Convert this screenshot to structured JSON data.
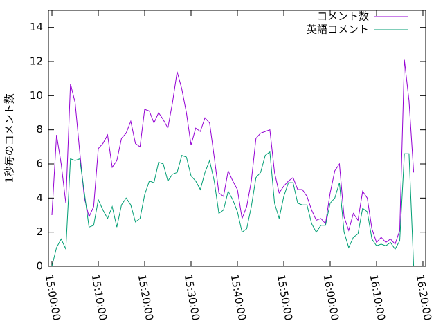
{
  "chart_data": {
    "type": "line",
    "y_label": "1秒毎のコメント数",
    "x": [
      "15:00:00",
      "15:01:00",
      "15:02:00",
      "15:03:00",
      "15:04:00",
      "15:05:00",
      "15:06:00",
      "15:07:00",
      "15:08:00",
      "15:09:00",
      "15:10:00",
      "15:11:00",
      "15:12:00",
      "15:13:00",
      "15:14:00",
      "15:15:00",
      "15:16:00",
      "15:17:00",
      "15:18:00",
      "15:19:00",
      "15:20:00",
      "15:21:00",
      "15:22:00",
      "15:23:00",
      "15:24:00",
      "15:25:00",
      "15:26:00",
      "15:27:00",
      "15:28:00",
      "15:29:00",
      "15:30:00",
      "15:31:00",
      "15:32:00",
      "15:33:00",
      "15:34:00",
      "15:35:00",
      "15:36:00",
      "15:37:00",
      "15:38:00",
      "15:39:00",
      "15:40:00",
      "15:41:00",
      "15:42:00",
      "15:43:00",
      "15:44:00",
      "15:45:00",
      "15:46:00",
      "15:47:00",
      "15:48:00",
      "15:49:00",
      "15:50:00",
      "15:51:00",
      "15:52:00",
      "15:53:00",
      "15:54:00",
      "15:55:00",
      "15:56:00",
      "15:57:00",
      "15:58:00",
      "15:59:00",
      "16:00:00",
      "16:01:00",
      "16:02:00",
      "16:03:00",
      "16:04:00",
      "16:05:00",
      "16:06:00",
      "16:07:00",
      "16:08:00",
      "16:09:00",
      "16:10:00",
      "16:11:00",
      "16:12:00",
      "16:13:00",
      "16:14:00",
      "16:15:00",
      "16:16:00",
      "16:17:00",
      "16:18:00"
    ],
    "series": [
      {
        "name": "コメント数",
        "color": "#9400d3",
        "values": [
          3.0,
          7.7,
          6.0,
          3.7,
          10.7,
          9.6,
          6.7,
          4.0,
          2.9,
          3.5,
          6.9,
          7.2,
          7.7,
          5.8,
          6.2,
          7.5,
          7.8,
          8.5,
          7.2,
          7.0,
          9.2,
          9.1,
          8.4,
          9.0,
          8.6,
          8.1,
          9.6,
          11.4,
          10.4,
          9.0,
          7.1,
          8.1,
          7.9,
          8.7,
          8.4,
          6.4,
          4.3,
          4.1,
          5.6,
          5.0,
          4.5,
          2.8,
          3.5,
          5.0,
          7.5,
          7.8,
          7.9,
          8.0,
          5.5,
          4.3,
          4.7,
          5.0,
          5.2,
          4.5,
          4.5,
          4.1,
          3.3,
          2.7,
          2.8,
          2.5,
          4.3,
          5.6,
          6.0,
          2.9,
          2.1,
          3.1,
          2.7,
          4.4,
          4.0,
          2.2,
          1.4,
          1.7,
          1.4,
          1.6,
          1.3,
          2.1,
          12.1,
          9.7,
          5.5
        ]
      },
      {
        "name": "英語コメント",
        "color": "#009e73",
        "values": [
          0,
          1.1,
          1.6,
          1.0,
          6.3,
          6.2,
          6.3,
          4.3,
          2.3,
          2.4,
          3.9,
          3.3,
          2.8,
          3.5,
          2.3,
          3.6,
          4.0,
          3.6,
          2.6,
          2.8,
          4.2,
          5.0,
          4.9,
          6.1,
          6.0,
          5.0,
          5.4,
          5.5,
          6.5,
          6.4,
          5.3,
          5.0,
          4.5,
          5.5,
          6.2,
          5.0,
          3.1,
          3.3,
          4.4,
          3.9,
          3.2,
          2.0,
          2.2,
          3.5,
          5.2,
          5.5,
          6.5,
          6.7,
          3.7,
          2.8,
          4.1,
          4.9,
          4.9,
          3.7,
          3.6,
          3.6,
          2.5,
          2.0,
          2.4,
          2.4,
          3.7,
          4.0,
          4.9,
          2.0,
          1.1,
          1.7,
          1.9,
          3.4,
          3.2,
          1.6,
          1.2,
          1.3,
          1.2,
          1.4,
          1.0,
          1.5,
          6.6,
          6.6,
          0
        ]
      }
    ],
    "xlim": [
      "14:59:15",
      "16:20:36"
    ],
    "xticks": [
      "15:00:00",
      "15:10:00",
      "15:20:00",
      "15:30:00",
      "15:40:00",
      "15:50:00",
      "16:00:00",
      "16:10:00",
      "16:20:00"
    ],
    "ylim": [
      0,
      15
    ],
    "yticks": [
      0,
      2,
      4,
      6,
      8,
      10,
      12,
      14
    ],
    "legend": "top-right"
  }
}
